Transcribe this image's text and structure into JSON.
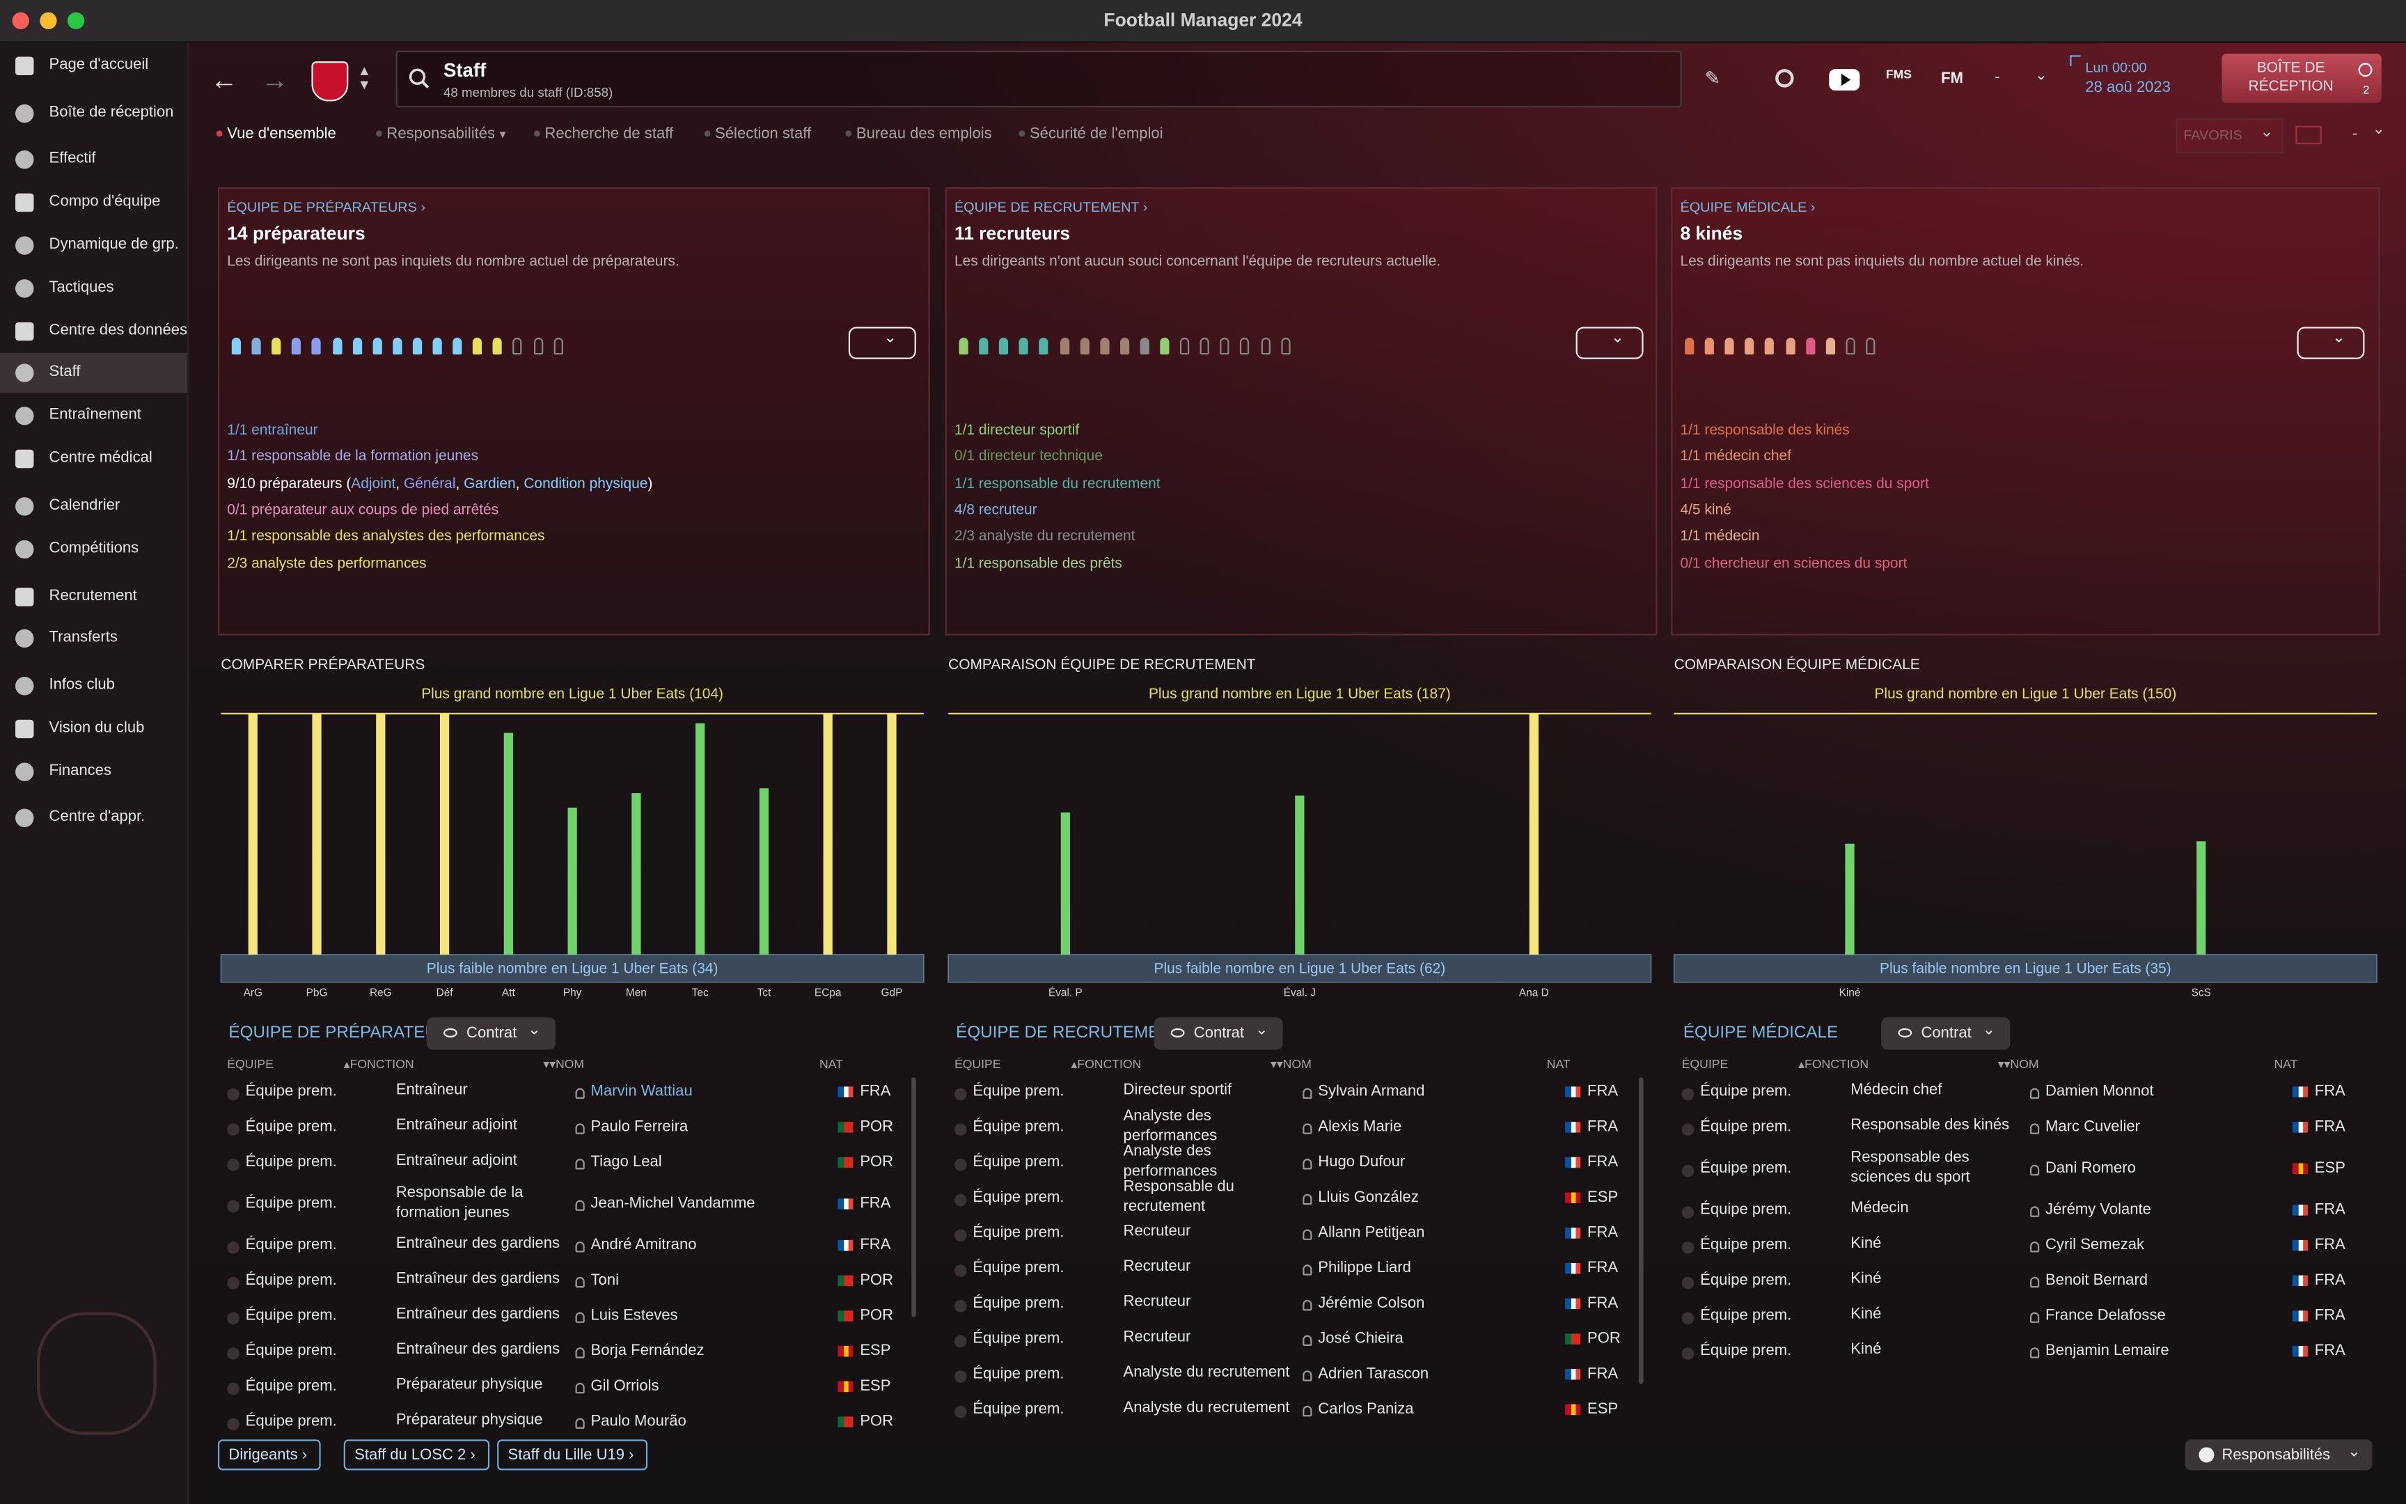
{
  "window": {
    "title": "Football Manager 2024"
  },
  "sidebar": [
    "Page d'accueil",
    "Boîte de réception",
    "Effectif",
    "Compo d'équipe",
    "Dynamique de grp.",
    "Tactiques",
    "Centre des données",
    "Staff",
    "Entraînement",
    "Centre médical",
    "Calendrier",
    "Compétitions",
    "Recrutement",
    "Transferts",
    "Infos club",
    "Vision du club",
    "Finances",
    "Centre d'appr."
  ],
  "topbar": {
    "title": "Staff",
    "subtitle": "48 membres du staff (ID:858)",
    "icons": [
      "FMS",
      "FM",
      "-"
    ],
    "time": "Lun 00:00",
    "date": "28 aoû 2023",
    "inbox": "BOÎTE DE RÉCEPTION",
    "inbox_count": 2
  },
  "tabs": [
    "Vue d'ensemble",
    "Responsabilités",
    "Recherche de staff",
    "Sélection staff",
    "Bureau des emplois",
    "Sécurité de l'emploi"
  ],
  "favorites": "FAVORIS",
  "favorites_extra": "-",
  "panels": [
    {
      "link": "ÉQUIPE DE PRÉPARATEURS",
      "count": "14 préparateurs",
      "description": "Les dirigeants ne sont pas inquiets du nombre actuel de préparateurs.",
      "roles": [
        {
          "parts": [
            "1/1 entraîneur"
          ],
          "color": "#6fa8dc"
        },
        {
          "parts": [
            "1/1 responsable de la formation jeunes"
          ],
          "color": "#a9a9e8"
        },
        {
          "parts": [
            "9/10 préparateurs (",
            "Adjoint",
            ", ",
            "Général",
            ", ",
            "Gardien",
            ", ",
            "Condition physique",
            ")"
          ],
          "color": "#ffffff",
          "part_colors": [
            "#ffffff",
            "#7fb0e0",
            "#ffffff",
            "#8a9ef0",
            "#ffffff",
            "#7fd0ff",
            "#ffffff",
            "#7fd0ff",
            "#ffffff"
          ]
        },
        {
          "parts": [
            "0/1 préparateur aux coups de pied arrêtés"
          ],
          "color": "#e58ac0"
        },
        {
          "parts": [
            "1/1 responsable des analystes des performances"
          ],
          "color": "#e8e05a"
        },
        {
          "parts": [
            "2/3 analyste des performances"
          ],
          "color": "#e8e05a"
        }
      ]
    },
    {
      "link": "ÉQUIPE DE RECRUTEMENT",
      "count": "11 recruteurs",
      "description": "Les dirigeants n'ont aucun souci concernant l'équipe de recruteurs actuelle.",
      "roles": [
        {
          "parts": [
            "1/1 directeur sportif"
          ],
          "color": "#8fcf6f"
        },
        {
          "parts": [
            "0/1 directeur technique"
          ],
          "color": "#6c9a5a"
        },
        {
          "parts": [
            "1/1 responsable du recrutement"
          ],
          "color": "#4fb3a5"
        },
        {
          "parts": [
            "4/8 recruteur"
          ],
          "color": "#7fb0e0"
        },
        {
          "parts": [
            "2/3 analyste du recrutement"
          ],
          "color": "#8a8a8a"
        },
        {
          "parts": [
            "1/1 responsable des prêts"
          ],
          "color": "#a8d08a"
        }
      ]
    },
    {
      "link": "ÉQUIPE MÉDICALE",
      "count": "8 kinés",
      "description": "Les dirigeants ne sont pas inquiets du nombre actuel de kinés.",
      "roles": [
        {
          "parts": [
            "1/1 responsable des kinés"
          ],
          "color": "#e0704a"
        },
        {
          "parts": [
            "1/1 médecin chef"
          ],
          "color": "#e89070"
        },
        {
          "parts": [
            "1/1 responsable des sciences du sport"
          ],
          "color": "#e05a8a"
        },
        {
          "parts": [
            "4/5 kiné"
          ],
          "color": "#e8a080"
        },
        {
          "parts": [
            "1/1 médecin"
          ],
          "color": "#e8b090"
        },
        {
          "parts": [
            "0/1 chercheur en sciences du sport"
          ],
          "color": "#e06080"
        }
      ]
    }
  ],
  "chart_data": [
    {
      "type": "bar",
      "title": "COMPARER PRÉPARATEURS",
      "max_label": "Plus grand nombre en Ligue 1 Uber Eats (104)",
      "min_label": "Plus faible nombre en Ligue 1 Uber Eats (34)",
      "categories": [
        "ArG",
        "PbG",
        "ReG",
        "Déf",
        "Att",
        "Phy",
        "Men",
        "Tec",
        "Tct",
        "ECpa",
        "GdP"
      ],
      "values": [
        100,
        100,
        100,
        100,
        92,
        61,
        67,
        96,
        69,
        100,
        100
      ],
      "colors": [
        "#f5e67a",
        "#f5e67a",
        "#f5e67a",
        "#f5e67a",
        "#6fd46a",
        "#6fd46a",
        "#6fd46a",
        "#6fd46a",
        "#6fd46a",
        "#f5e67a",
        "#f5e67a"
      ],
      "ylim": [
        0,
        100
      ]
    },
    {
      "type": "bar",
      "title": "COMPARAISON ÉQUIPE DE RECRUTEMENT",
      "max_label": "Plus grand nombre en Ligue 1 Uber Eats (187)",
      "min_label": "Plus faible nombre en Ligue 1 Uber Eats (62)",
      "categories": [
        "Éval. P",
        "Éval. J",
        "Ana D"
      ],
      "values": [
        59,
        66,
        100
      ],
      "colors": [
        "#6fd46a",
        "#6fd46a",
        "#f5e67a"
      ],
      "ylim": [
        0,
        100
      ]
    },
    {
      "type": "bar",
      "title": "COMPARAISON ÉQUIPE MÉDICALE",
      "max_label": "Plus grand nombre en Ligue 1 Uber Eats (150)",
      "min_label": "Plus faible nombre en Ligue 1 Uber Eats (35)",
      "categories": [
        "Kiné",
        "ScS"
      ],
      "values": [
        46,
        47
      ],
      "colors": [
        "#6fd46a",
        "#6fd46a"
      ],
      "ylim": [
        0,
        100
      ]
    }
  ],
  "tables": [
    {
      "title": "ÉQUIPE DE PRÉPARATEURS",
      "filter": "Contrat",
      "columns": [
        "ÉQUIPE",
        "FONCTION",
        "NOM",
        "NAT"
      ],
      "rows": [
        [
          "Équipe prem.",
          "Entraîneur",
          "Marvin Wattiau",
          "FRA"
        ],
        [
          "Équipe prem.",
          "Entraîneur adjoint",
          "Paulo Ferreira",
          "POR"
        ],
        [
          "Équipe prem.",
          "Entraîneur adjoint",
          "Tiago Leal",
          "POR"
        ],
        [
          "Équipe prem.",
          "Responsable de la formation jeunes",
          "Jean-Michel Vandamme",
          "FRA"
        ],
        [
          "Équipe prem.",
          "Entraîneur des gardiens",
          "André Amitrano",
          "FRA"
        ],
        [
          "Équipe prem.",
          "Entraîneur des gardiens",
          "Toni",
          "POR"
        ],
        [
          "Équipe prem.",
          "Entraîneur des gardiens",
          "Luis Esteves",
          "POR"
        ],
        [
          "Équipe prem.",
          "Entraîneur des gardiens",
          "Borja Fernández",
          "ESP"
        ],
        [
          "Équipe prem.",
          "Préparateur physique",
          "Gil Orriols",
          "ESP"
        ],
        [
          "Équipe prem.",
          "Préparateur physique",
          "Paulo Mourão",
          "POR"
        ]
      ]
    },
    {
      "title": "ÉQUIPE DE RECRUTEMENT",
      "filter": "Contrat",
      "columns": [
        "ÉQUIPE",
        "FONCTION",
        "NOM",
        "NAT"
      ],
      "rows": [
        [
          "Équipe prem.",
          "Directeur sportif",
          "Sylvain Armand",
          "FRA"
        ],
        [
          "Équipe prem.",
          "Analyste des performances",
          "Alexis Marie",
          "FRA"
        ],
        [
          "Équipe prem.",
          "Analyste des performances",
          "Hugo Dufour",
          "FRA"
        ],
        [
          "Équipe prem.",
          "Responsable du recrutement",
          "Lluis González",
          "ESP"
        ],
        [
          "Équipe prem.",
          "Recruteur",
          "Allann Petitjean",
          "FRA"
        ],
        [
          "Équipe prem.",
          "Recruteur",
          "Philippe Liard",
          "FRA"
        ],
        [
          "Équipe prem.",
          "Recruteur",
          "Jérémie Colson",
          "FRA"
        ],
        [
          "Équipe prem.",
          "Recruteur",
          "José Chieira",
          "POR"
        ],
        [
          "Équipe prem.",
          "Analyste du recrutement",
          "Adrien Tarascon",
          "FRA"
        ],
        [
          "Équipe prem.",
          "Analyste du recrutement",
          "Carlos Paniza",
          "ESP"
        ]
      ]
    },
    {
      "title": "ÉQUIPE MÉDICALE",
      "filter": "Contrat",
      "columns": [
        "ÉQUIPE",
        "FONCTION",
        "NOM",
        "NAT"
      ],
      "rows": [
        [
          "Équipe prem.",
          "Médecin chef",
          "Damien Monnot",
          "FRA"
        ],
        [
          "Équipe prem.",
          "Responsable des kinés",
          "Marc Cuvelier",
          "FRA"
        ],
        [
          "Équipe prem.",
          "Responsable des sciences du sport",
          "Dani Romero",
          "ESP"
        ],
        [
          "Équipe prem.",
          "Médecin",
          "Jérémy Volante",
          "FRA"
        ],
        [
          "Équipe prem.",
          "Kiné",
          "Cyril Semezak",
          "FRA"
        ],
        [
          "Équipe prem.",
          "Kiné",
          "Benoit Bernard",
          "FRA"
        ],
        [
          "Équipe prem.",
          "Kiné",
          "France Delafosse",
          "FRA"
        ],
        [
          "Équipe prem.",
          "Kiné",
          "Benjamin Lemaire",
          "FRA"
        ]
      ]
    }
  ],
  "flags": {
    "FRA": [
      "#0055a4",
      "#ffffff",
      "#ef4135"
    ],
    "POR": [
      "#046a38",
      "#da291c",
      "#da291c"
    ],
    "ESP": [
      "#c60b1e",
      "#ffc400",
      "#c60b1e"
    ]
  },
  "footer": {
    "buttons": [
      "Dirigeants",
      "Staff du LOSC 2",
      "Staff du Lille U19"
    ],
    "responsibilities": "Responsabilités"
  }
}
